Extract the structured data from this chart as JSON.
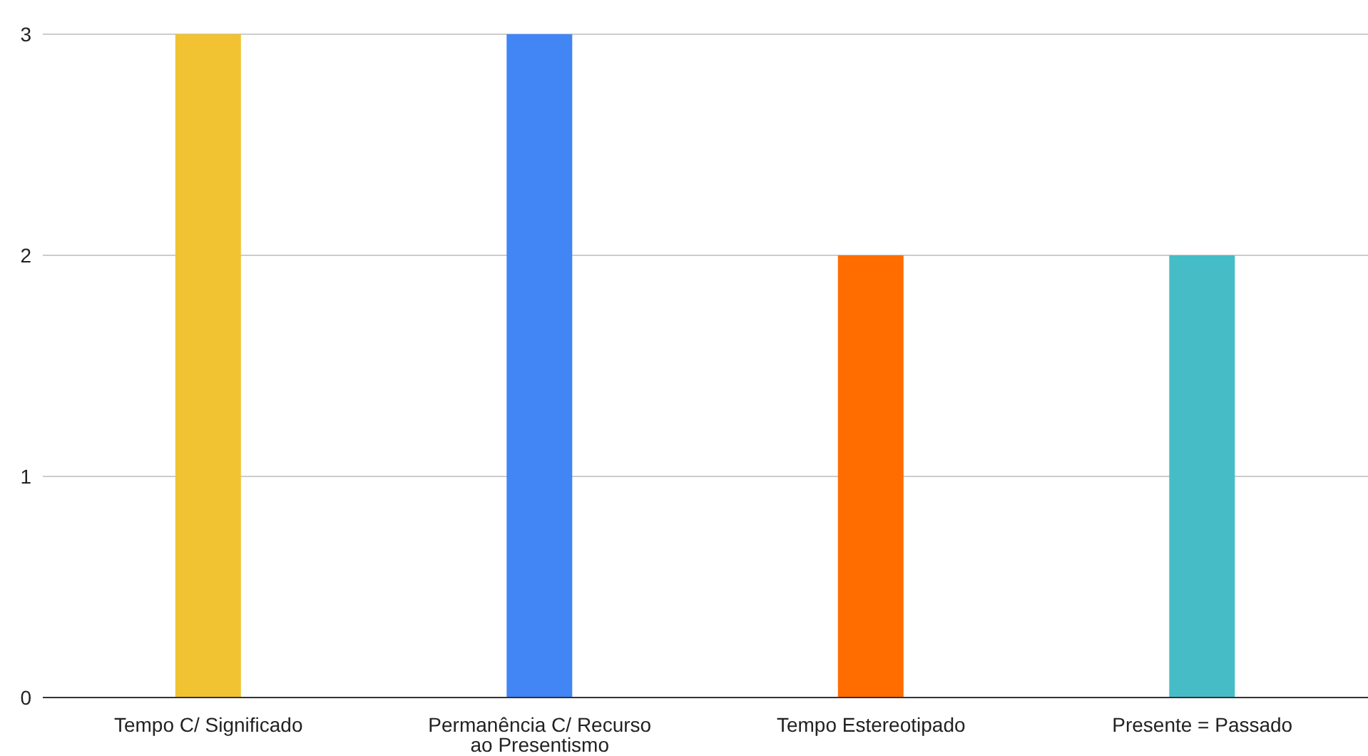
{
  "chart_data": {
    "type": "bar",
    "categories": [
      "Tempo C/ Significado",
      "Permanência C/ Recurso ao Presentismo",
      "Tempo Estereotipado",
      "Presente = Passado"
    ],
    "values": [
      3,
      3,
      2,
      2
    ],
    "colors": [
      "#f1c232",
      "#4285f4",
      "#ff6d01",
      "#46bdc6"
    ],
    "ylim": [
      0,
      3
    ],
    "yticks": [
      0,
      1,
      2,
      3
    ],
    "grid": "y",
    "legend": false
  }
}
